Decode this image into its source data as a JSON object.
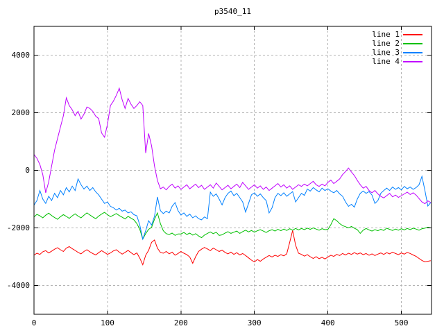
{
  "window": {
    "background": "#ffffff",
    "frame_color": "#000000",
    "grid_color": "#b4b4b4"
  },
  "chart_data": {
    "type": "line",
    "title": "p3540_11",
    "xlabel": "",
    "ylabel": "",
    "xlim": [
      0,
      541
    ],
    "ylim": [
      -5000,
      5000
    ],
    "x_ticks": [
      0,
      100,
      200,
      300,
      400,
      500
    ],
    "y_ticks": [
      -4000,
      -2000,
      0,
      2000,
      4000
    ],
    "grid": true,
    "legend_position": "top-right",
    "x_start": 0,
    "x_step": 4,
    "series": [
      {
        "name": "line 1",
        "color": "#ff0000",
        "values": [
          -2950,
          -2880,
          -2920,
          -2830,
          -2790,
          -2870,
          -2810,
          -2740,
          -2690,
          -2760,
          -2820,
          -2700,
          -2650,
          -2720,
          -2780,
          -2850,
          -2900,
          -2820,
          -2760,
          -2830,
          -2890,
          -2940,
          -2860,
          -2790,
          -2850,
          -2920,
          -2870,
          -2800,
          -2760,
          -2840,
          -2910,
          -2850,
          -2780,
          -2860,
          -2930,
          -2870,
          -3050,
          -3280,
          -2950,
          -2780,
          -2500,
          -2420,
          -2700,
          -2850,
          -2880,
          -2820,
          -2900,
          -2840,
          -2950,
          -2890,
          -2820,
          -2880,
          -2930,
          -3010,
          -3230,
          -3000,
          -2820,
          -2740,
          -2680,
          -2730,
          -2790,
          -2700,
          -2760,
          -2820,
          -2770,
          -2850,
          -2900,
          -2840,
          -2920,
          -2860,
          -2940,
          -2890,
          -2960,
          -3040,
          -3120,
          -3180,
          -3100,
          -3160,
          -3080,
          -3020,
          -2960,
          -3010,
          -2950,
          -2990,
          -2930,
          -2970,
          -2900,
          -2500,
          -2090,
          -2600,
          -2880,
          -2920,
          -2980,
          -2930,
          -3000,
          -3060,
          -3000,
          -3070,
          -3020,
          -3080,
          -3010,
          -2950,
          -2990,
          -2920,
          -2960,
          -2890,
          -2940,
          -2880,
          -2920,
          -2860,
          -2910,
          -2870,
          -2930,
          -2890,
          -2950,
          -2900,
          -2960,
          -2910,
          -2870,
          -2920,
          -2860,
          -2900,
          -2840,
          -2890,
          -2930,
          -2870,
          -2910,
          -2850,
          -2890,
          -2940,
          -2990,
          -3060,
          -3130,
          -3180,
          -3160,
          -3140
        ]
      },
      {
        "name": "line 2",
        "color": "#00c000",
        "values": [
          -1620,
          -1530,
          -1580,
          -1650,
          -1560,
          -1490,
          -1570,
          -1640,
          -1700,
          -1610,
          -1540,
          -1600,
          -1670,
          -1580,
          -1510,
          -1590,
          -1650,
          -1560,
          -1480,
          -1550,
          -1620,
          -1680,
          -1590,
          -1520,
          -1460,
          -1540,
          -1610,
          -1560,
          -1500,
          -1570,
          -1630,
          -1690,
          -1600,
          -1660,
          -1720,
          -1850,
          -2050,
          -2390,
          -2200,
          -2050,
          -1980,
          -1700,
          -1480,
          -1850,
          -2100,
          -2200,
          -2230,
          -2180,
          -2260,
          -2210,
          -2210,
          -2160,
          -2230,
          -2180,
          -2250,
          -2200,
          -2280,
          -2340,
          -2250,
          -2190,
          -2140,
          -2200,
          -2150,
          -2260,
          -2240,
          -2180,
          -2130,
          -2190,
          -2150,
          -2110,
          -2190,
          -2130,
          -2080,
          -2140,
          -2090,
          -2150,
          -2100,
          -2060,
          -2110,
          -2160,
          -2100,
          -2060,
          -2110,
          -2050,
          -2100,
          -2040,
          -2090,
          -2030,
          -2080,
          -2020,
          -2070,
          -2020,
          -2060,
          -2010,
          -2050,
          -2000,
          -2040,
          -2080,
          -2030,
          -2060,
          -2050,
          -1890,
          -1680,
          -1750,
          -1850,
          -1920,
          -1960,
          -2000,
          -1950,
          -2010,
          -2060,
          -2190,
          -2080,
          -2020,
          -2070,
          -2110,
          -2060,
          -2100,
          -2050,
          -2090,
          -2010,
          -2050,
          -2090,
          -2040,
          -2080,
          -2030,
          -2070,
          -2020,
          -2060,
          -2010,
          -2040,
          -2080,
          -2030,
          -2010,
          -1980,
          -2000
        ]
      },
      {
        "name": "line 3",
        "color": "#0080ff",
        "values": [
          -1210,
          -1050,
          -700,
          -1000,
          -1150,
          -900,
          -1050,
          -800,
          -950,
          -700,
          -850,
          -600,
          -750,
          -550,
          -700,
          -300,
          -500,
          -650,
          -550,
          -700,
          -600,
          -750,
          -850,
          -1000,
          -1150,
          -1100,
          -1250,
          -1300,
          -1380,
          -1320,
          -1420,
          -1380,
          -1480,
          -1440,
          -1540,
          -1580,
          -1900,
          -2390,
          -2100,
          -1750,
          -1900,
          -1600,
          -925,
          -1400,
          -1500,
          -1420,
          -1480,
          -1250,
          -1120,
          -1400,
          -1550,
          -1480,
          -1600,
          -1520,
          -1650,
          -1580,
          -1680,
          -1720,
          -1620,
          -1680,
          -760,
          -900,
          -820,
          -1000,
          -1200,
          -950,
          -800,
          -720,
          -880,
          -800,
          -950,
          -1100,
          -1450,
          -1150,
          -850,
          -780,
          -900,
          -820,
          -950,
          -1050,
          -1480,
          -1300,
          -950,
          -800,
          -880,
          -780,
          -900,
          -820,
          -740,
          -1100,
          -950,
          -800,
          -870,
          -650,
          -720,
          -600,
          -680,
          -750,
          -620,
          -700,
          -640,
          -720,
          -780,
          -700,
          -820,
          -900,
          -1100,
          -1250,
          -1180,
          -1280,
          -1000,
          -800,
          -720,
          -800,
          -740,
          -860,
          -1150,
          -1050,
          -800,
          -700,
          -620,
          -700,
          -580,
          -660,
          -600,
          -680,
          -560,
          -640,
          -580,
          -660,
          -600,
          -500,
          -210,
          -700,
          -1240,
          -1120
        ]
      },
      {
        "name": "line 4",
        "color": "#c000ff",
        "values": [
          550,
          420,
          200,
          -150,
          -780,
          -400,
          150,
          700,
          1100,
          1500,
          1900,
          2520,
          2250,
          2100,
          1900,
          2050,
          1780,
          1950,
          2200,
          2150,
          2050,
          1880,
          1800,
          1300,
          1150,
          1600,
          2250,
          2400,
          2600,
          2850,
          2450,
          2150,
          2500,
          2300,
          2150,
          2250,
          2380,
          2250,
          600,
          1280,
          850,
          150,
          -350,
          -640,
          -580,
          -680,
          -560,
          -480,
          -620,
          -540,
          -660,
          -580,
          -500,
          -640,
          -560,
          -480,
          -600,
          -520,
          -660,
          -580,
          -500,
          -620,
          -440,
          -560,
          -680,
          -600,
          -520,
          -640,
          -560,
          -480,
          -600,
          -420,
          -540,
          -660,
          -580,
          -500,
          -620,
          -540,
          -660,
          -580,
          -700,
          -620,
          -540,
          -460,
          -580,
          -500,
          -620,
          -540,
          -660,
          -580,
          -500,
          -560,
          -480,
          -540,
          -460,
          -380,
          -500,
          -560,
          -480,
          -540,
          -420,
          -340,
          -460,
          -380,
          -300,
          -150,
          -40,
          80,
          -60,
          -180,
          -350,
          -500,
          -620,
          -560,
          -700,
          -780,
          -700,
          -820,
          -900,
          -960,
          -880,
          -800,
          -920,
          -860,
          -940,
          -880,
          -820,
          -760,
          -840,
          -780,
          -860,
          -980,
          -1100,
          -1160,
          -1060,
          -1120
        ]
      }
    ]
  }
}
